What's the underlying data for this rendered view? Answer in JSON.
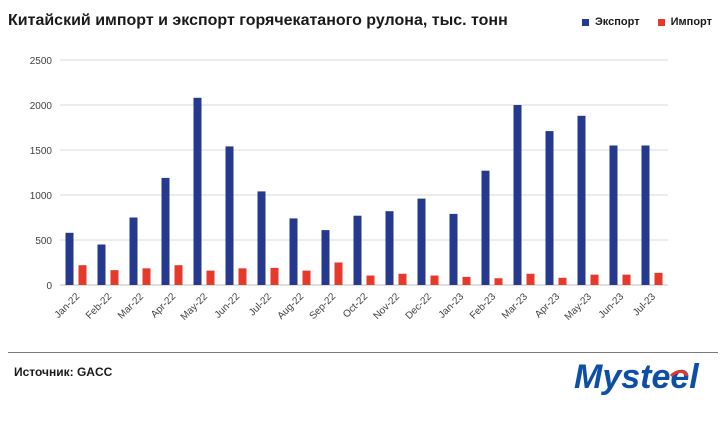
{
  "header": {
    "title": "Китайский импорт и экспорт горячекатаного рулона, тыс. тонн"
  },
  "legend": [
    {
      "label": "Экспорт",
      "color": "#253a8e"
    },
    {
      "label": "Импорт",
      "color": "#e5392c"
    }
  ],
  "footer": {
    "source": "Источник: GACC",
    "logo_text": "Mysteel"
  },
  "colors": {
    "export": "#253a8e",
    "import": "#e5392c",
    "grid": "#d9d9d9",
    "logo_blue": "#0d4ea6",
    "logo_red": "#e5392c"
  },
  "chart_data": {
    "type": "bar",
    "categories": [
      "Jan-22",
      "Feb-22",
      "Mar-22",
      "Apr-22",
      "May-22",
      "Jun-22",
      "Jul-22",
      "Aug-22",
      "Sep-22",
      "Oct-22",
      "Nov-22",
      "Dec-22",
      "Jan-23",
      "Feb-23",
      "Mar-23",
      "Apr-23",
      "May-23",
      "Jun-23",
      "Jul-23"
    ],
    "series": [
      {
        "name": "Экспорт",
        "values": [
          580,
          450,
          750,
          1190,
          2080,
          1540,
          1040,
          740,
          610,
          770,
          820,
          960,
          790,
          1270,
          2000,
          1710,
          1880,
          1550,
          1550
        ]
      },
      {
        "name": "Импорт",
        "values": [
          220,
          165,
          185,
          220,
          160,
          185,
          190,
          160,
          250,
          105,
          125,
          105,
          90,
          75,
          125,
          80,
          115,
          115,
          135
        ]
      }
    ],
    "ylim": [
      0,
      2500
    ],
    "yticks": [
      0,
      500,
      1000,
      1500,
      2000,
      2500
    ],
    "grid": true,
    "legend_position": "top-right"
  }
}
